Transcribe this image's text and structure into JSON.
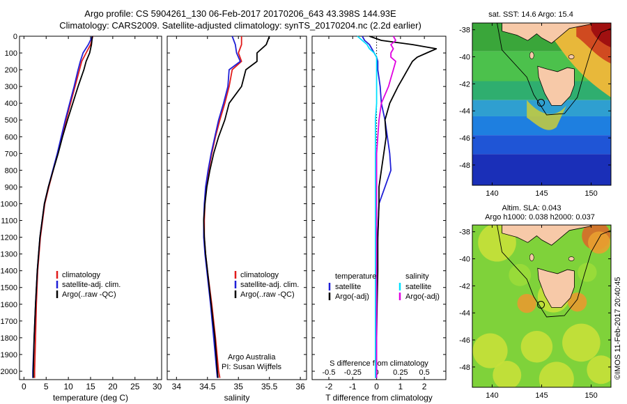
{
  "header": {
    "line1": "Argo profile: CS 5904261_130 06-Feb-2017 20170206_643 43.398S 144.93E",
    "line2": "Climatology: CARS2009. Satellite-adjusted climatology: synTS_20170204.nc (2.2d earlier)"
  },
  "credit": "©IMOS 11-Feb-2017 20:40:45",
  "colors": {
    "climatology": "#e01b1b",
    "satellite": "#1f1fd6",
    "argo": "#000000",
    "salinity_sat": "#00e0ff",
    "salinity_argo": "#e000e0"
  },
  "chart_data": [
    {
      "type": "line",
      "name": "temperature",
      "xlabel": "temperature (deg C)",
      "ylabel": "",
      "xlim": [
        -1,
        31
      ],
      "ylim": [
        0,
        2050
      ],
      "xticks": [
        0,
        5,
        10,
        15,
        20,
        25,
        30
      ],
      "yticks": [
        0,
        100,
        200,
        300,
        400,
        500,
        600,
        700,
        800,
        900,
        1000,
        1100,
        1200,
        1300,
        1400,
        1500,
        1600,
        1700,
        1800,
        1900,
        2000
      ],
      "depth": [
        0,
        50,
        100,
        150,
        200,
        300,
        400,
        500,
        600,
        700,
        800,
        900,
        1000,
        1200,
        1400,
        1600,
        1800,
        2000,
        2040
      ],
      "series": [
        {
          "name": "climatology",
          "color": "#e01b1b",
          "values": [
            15.5,
            15.0,
            14.0,
            13.0,
            12.5,
            11.5,
            10.5,
            9.5,
            8.5,
            7.6,
            6.6,
            5.6,
            4.7,
            3.7,
            3.1,
            2.8,
            2.6,
            2.4,
            2.4
          ]
        },
        {
          "name": "satellite-adj. clim.",
          "color": "#1f1fd6",
          "values": [
            15.4,
            14.5,
            13.3,
            12.7,
            12.2,
            11.3,
            10.3,
            9.3,
            8.4,
            7.5,
            6.5,
            5.5,
            4.6,
            3.6,
            3.0,
            2.6,
            2.3,
            2.0,
            2.0
          ]
        },
        {
          "name": "Argo(..raw -QC)",
          "color": "#000000",
          "values": [
            15.4,
            15.2,
            14.8,
            14.0,
            13.5,
            12.2,
            11.0,
            9.8,
            8.7,
            7.7,
            6.6,
            5.5,
            4.6,
            3.6,
            3.0,
            2.6,
            2.3,
            2.1,
            2.1
          ]
        }
      ],
      "legend": [
        "climatology",
        "satellite-adj. clim.",
        "Argo(..raw -QC)"
      ]
    },
    {
      "type": "line",
      "name": "salinity",
      "xlabel": "salinity",
      "xlim": [
        33.85,
        36.1
      ],
      "ylim": [
        0,
        2050
      ],
      "xticks": [
        34,
        34.5,
        35,
        35.5,
        36
      ],
      "depth": [
        0,
        50,
        100,
        150,
        200,
        300,
        400,
        500,
        600,
        700,
        800,
        900,
        1000,
        1100,
        1200,
        1300,
        1400,
        1600,
        1800,
        2000,
        2040
      ],
      "series": [
        {
          "name": "climatology",
          "color": "#e01b1b",
          "values": [
            35.05,
            35.05,
            35.0,
            35.05,
            34.9,
            34.85,
            34.78,
            34.7,
            34.63,
            34.57,
            34.52,
            34.48,
            34.46,
            34.45,
            34.45,
            34.47,
            34.5,
            34.57,
            34.63,
            34.68,
            34.7
          ]
        },
        {
          "name": "satellite-adj. clim.",
          "color": "#1f1fd6",
          "values": [
            34.9,
            34.95,
            34.97,
            35.03,
            34.85,
            34.83,
            34.76,
            34.68,
            34.62,
            34.56,
            34.51,
            34.47,
            34.45,
            34.44,
            34.44,
            34.46,
            34.49,
            34.55,
            34.6,
            34.65,
            34.66
          ]
        },
        {
          "name": "Argo(..raw -QC)",
          "color": "#000000",
          "values": [
            35.5,
            35.45,
            35.3,
            35.3,
            35.12,
            35.05,
            34.85,
            34.78,
            34.68,
            34.6,
            34.54,
            34.49,
            34.46,
            34.44,
            34.45,
            34.47,
            34.5,
            34.56,
            34.62,
            34.66,
            34.67
          ]
        }
      ],
      "legend": [
        "climatology",
        "satellite-adj. clim.",
        "Argo(..raw -QC)"
      ],
      "note1": "Argo Australia",
      "note2": "PI: Susan Wijffels"
    },
    {
      "type": "line",
      "name": "difference",
      "xlabel": "T difference from climatology",
      "xlabel_top": "S difference from climatology",
      "xlim": [
        -2.7,
        2.9
      ],
      "ylim": [
        0,
        2050
      ],
      "xticks": [
        -2,
        -1,
        0,
        1,
        2
      ],
      "sticks": [
        "-0.5",
        "-0.25",
        "0",
        "0.25",
        "0.5"
      ],
      "sticks_pos": [
        -2,
        -1,
        0,
        1,
        2
      ],
      "depth": [
        0,
        25,
        50,
        75,
        100,
        125,
        150,
        200,
        250,
        300,
        400,
        500,
        600,
        700,
        800,
        900,
        1000,
        1200,
        1400,
        1600,
        1800,
        2000,
        2040
      ],
      "series": [
        {
          "name": "temperature satellite",
          "color": "#1f1fd6",
          "values": [
            -0.6,
            -0.5,
            -0.3,
            -0.2,
            -0.1,
            0,
            0.05,
            0.05,
            0.1,
            0.15,
            0.2,
            0.35,
            0.45,
            0.55,
            0.6,
            0.35,
            0.1,
            0.05,
            0.0,
            0.0,
            -0.05,
            -0.05,
            -0.05
          ]
        },
        {
          "name": "temperature Argo(-adj)",
          "color": "#000000",
          "values": [
            -0.3,
            0.2,
            1.5,
            2.5,
            2.1,
            1.7,
            1.5,
            1.3,
            1.1,
            0.9,
            0.55,
            0.35,
            0.4,
            0.3,
            0.2,
            0.1,
            0.1,
            0.05,
            0.05,
            0.02,
            0.0,
            0.0,
            0.0
          ]
        },
        {
          "name": "salinity satellite",
          "color": "#00e0ff",
          "values": [
            -0.8,
            -0.6,
            -0.4,
            -0.3,
            -0.1,
            0,
            0,
            0,
            0,
            0,
            0,
            -0.05,
            -0.05,
            -0.05,
            -0.05,
            -0.05,
            -0.05,
            -0.05,
            -0.05,
            -0.05,
            -0.05,
            -0.05,
            -0.05
          ]
        },
        {
          "name": "salinity Argo(-adj)",
          "color": "#e000e0",
          "values": [
            0.7,
            0.8,
            0.6,
            0.7,
            0.6,
            0.6,
            0.8,
            0.7,
            0.6,
            0.5,
            0.2,
            0.1,
            0.05,
            0.0,
            0.0,
            0.0,
            0.0,
            0.0,
            0.0,
            0.0,
            0.0,
            0.0,
            0.0
          ]
        }
      ],
      "legend_title_t": "temperature",
      "legend_title_s": "salinity",
      "legend_t": [
        "satellite",
        "Argo(-adj)"
      ],
      "legend_s": [
        "satellite",
        "Argo(-adj)"
      ]
    }
  ],
  "maps": {
    "sst": {
      "title": "sat. SST: 14.6 Argo: 15.4",
      "xticks": [
        "140",
        "145",
        "150"
      ],
      "yticks": [
        "-38",
        "-40",
        "-42",
        "-44",
        "-46",
        "-48"
      ]
    },
    "sla": {
      "title1": "Altim. SLA: 0.043",
      "title2": "Argo h1000: 0.038 h2000: 0.037",
      "xticks": [
        "140",
        "145",
        "150"
      ],
      "yticks": [
        "-38",
        "-40",
        "-42",
        "-44",
        "-46",
        "-48"
      ]
    }
  }
}
